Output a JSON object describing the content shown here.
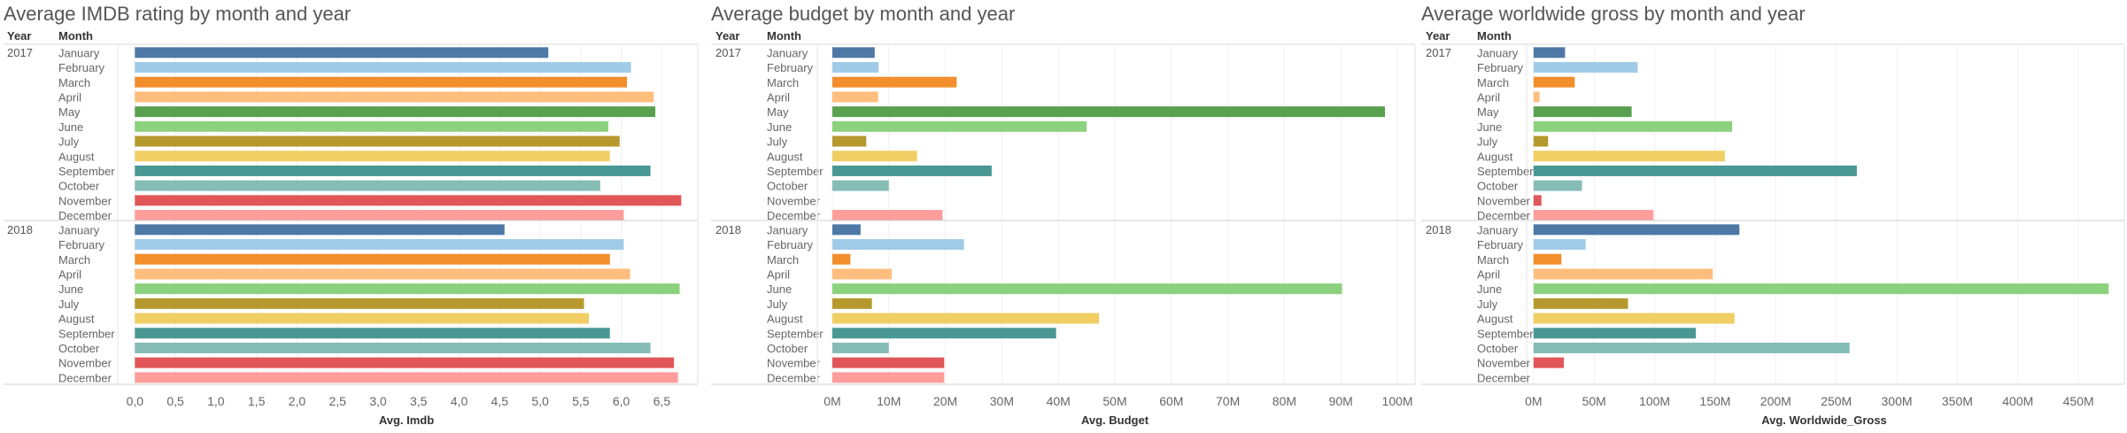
{
  "months_2017": [
    "January",
    "February",
    "March",
    "April",
    "May",
    "June",
    "July",
    "August",
    "September",
    "October",
    "November",
    "December"
  ],
  "months_2018": [
    "January",
    "February",
    "March",
    "April",
    "June",
    "July",
    "August",
    "September",
    "October",
    "November",
    "December"
  ],
  "colors": {
    "January": "#4e79a7",
    "February": "#a0cbe8",
    "March": "#f28e2b",
    "April": "#ffbe7d",
    "May": "#59a14f",
    "June": "#8cd17d",
    "July": "#b6992d",
    "August": "#f1ce63",
    "September": "#499894",
    "October": "#86bcb6",
    "November": "#e15759",
    "December": "#ff9d9a"
  },
  "header": {
    "year_label": "Year",
    "month_label": "Month"
  },
  "chart_data": [
    {
      "type": "bar",
      "title": "Average IMDB rating by month and year",
      "xlabel": "Avg. Imdb",
      "ylabel": "Month",
      "xlim": [
        -0.2,
        6.9
      ],
      "ticks": [
        0,
        0.5,
        1,
        1.5,
        2,
        2.5,
        3,
        3.5,
        4,
        4.5,
        5,
        5.5,
        6,
        6.5
      ],
      "tick_labels": [
        "0,0",
        "0,5",
        "1,0",
        "1,5",
        "2,0",
        "2,5",
        "3,0",
        "3,5",
        "4,0",
        "4,5",
        "5,0",
        "5,5",
        "6,0",
        "6,5"
      ],
      "groups": [
        {
          "year": "2017",
          "categories": [
            "January",
            "February",
            "March",
            "April",
            "May",
            "June",
            "July",
            "August",
            "September",
            "October",
            "November",
            "December"
          ],
          "values": [
            5.1,
            6.12,
            6.07,
            6.4,
            6.42,
            5.84,
            5.98,
            5.86,
            6.36,
            5.74,
            6.74,
            6.03
          ]
        },
        {
          "year": "2018",
          "categories": [
            "January",
            "February",
            "March",
            "April",
            "June",
            "July",
            "August",
            "September",
            "October",
            "November",
            "December"
          ],
          "values": [
            4.56,
            6.03,
            5.86,
            6.11,
            6.72,
            5.54,
            5.6,
            5.86,
            6.36,
            6.65,
            6.7
          ]
        }
      ]
    },
    {
      "type": "bar",
      "title": "Average budget by month and year",
      "xlabel": "Avg. Budget",
      "ylabel": "Month",
      "xlim": [
        -2500000,
        102500000
      ],
      "ticks": [
        0,
        10000000,
        20000000,
        30000000,
        40000000,
        50000000,
        60000000,
        70000000,
        80000000,
        90000000,
        100000000
      ],
      "tick_labels": [
        "0M",
        "10M",
        "20M",
        "30M",
        "40M",
        "50M",
        "60M",
        "70M",
        "80M",
        "90M",
        "100M"
      ],
      "groups": [
        {
          "year": "2017",
          "categories": [
            "January",
            "February",
            "March",
            "April",
            "May",
            "June",
            "July",
            "August",
            "September",
            "October",
            "November",
            "December"
          ],
          "values": [
            7500000,
            8200000,
            22000000,
            8100000,
            97800000,
            45000000,
            6000000,
            15000000,
            28200000,
            10000000,
            0,
            19500000
          ]
        },
        {
          "year": "2018",
          "categories": [
            "January",
            "February",
            "March",
            "April",
            "June",
            "July",
            "August",
            "September",
            "October",
            "November",
            "December"
          ],
          "values": [
            5000000,
            23300000,
            3200000,
            10500000,
            90200000,
            7000000,
            47200000,
            39600000,
            10000000,
            19800000,
            19800000
          ]
        }
      ]
    },
    {
      "type": "bar",
      "title": "Average worldwide gross by month and year",
      "xlabel": "Avg. Worldwide_Gross",
      "ylabel": "Month",
      "xlim": [
        -5000000,
        485000000
      ],
      "ticks": [
        0,
        50000000,
        100000000,
        150000000,
        200000000,
        250000000,
        300000000,
        350000000,
        400000000,
        450000000
      ],
      "tick_labels": [
        "0M",
        "50M",
        "100M",
        "150M",
        "200M",
        "250M",
        "300M",
        "350M",
        "400M",
        "450M"
      ],
      "groups": [
        {
          "year": "2017",
          "categories": [
            "January",
            "February",
            "March",
            "April",
            "May",
            "June",
            "July",
            "August",
            "September",
            "October",
            "November",
            "December"
          ],
          "values": [
            26000000,
            86000000,
            34000000,
            5000000,
            81000000,
            164000000,
            12000000,
            158000000,
            267000000,
            40000000,
            6500000,
            99000000
          ]
        },
        {
          "year": "2018",
          "categories": [
            "January",
            "February",
            "March",
            "April",
            "June",
            "July",
            "August",
            "September",
            "October",
            "November",
            "December"
          ],
          "values": [
            170000000,
            43000000,
            23000000,
            148000000,
            475000000,
            78000000,
            166000000,
            134000000,
            261000000,
            25000000,
            0
          ]
        }
      ]
    }
  ]
}
